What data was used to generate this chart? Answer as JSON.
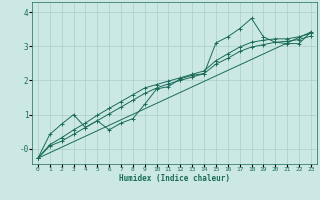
{
  "xlabel": "Humidex (Indice chaleur)",
  "bg_color": "#cce8e4",
  "grid_color": "#aacfcc",
  "line_color": "#1a6b5a",
  "xlim": [
    -0.5,
    23.5
  ],
  "ylim": [
    -0.45,
    4.3
  ],
  "yticks": [
    0,
    1,
    2,
    3,
    4
  ],
  "ytick_labels": [
    "-0",
    "1",
    "2",
    "3",
    "4"
  ],
  "xticks": [
    0,
    1,
    2,
    3,
    4,
    5,
    6,
    7,
    8,
    9,
    10,
    11,
    12,
    13,
    14,
    15,
    16,
    17,
    18,
    19,
    20,
    21,
    22,
    23
  ],
  "line1_x": [
    0,
    1,
    2,
    3,
    4,
    5,
    6,
    7,
    8,
    9,
    10,
    11,
    12,
    13,
    14,
    15,
    16,
    17,
    18,
    19,
    20,
    21,
    22,
    23
  ],
  "line1_y": [
    -0.28,
    0.42,
    0.72,
    1.0,
    0.62,
    0.82,
    0.55,
    0.75,
    0.88,
    1.3,
    1.75,
    1.82,
    2.05,
    2.15,
    2.2,
    3.1,
    3.28,
    3.52,
    3.82,
    3.28,
    3.12,
    3.08,
    3.08,
    3.42
  ],
  "line2_x": [
    0,
    23
  ],
  "line2_y": [
    -0.28,
    3.42
  ],
  "line3_x": [
    0,
    1,
    2,
    3,
    4,
    5,
    6,
    7,
    8,
    9,
    10,
    11,
    12,
    13,
    14,
    15,
    16,
    17,
    18,
    19,
    20,
    21,
    22,
    23
  ],
  "line3_y": [
    -0.28,
    0.12,
    0.32,
    0.55,
    0.75,
    0.98,
    1.18,
    1.38,
    1.58,
    1.78,
    1.88,
    1.98,
    2.08,
    2.18,
    2.28,
    2.58,
    2.78,
    2.98,
    3.12,
    3.18,
    3.22,
    3.22,
    3.28,
    3.38
  ],
  "line4_x": [
    0,
    1,
    2,
    3,
    4,
    5,
    6,
    7,
    8,
    9,
    10,
    11,
    12,
    13,
    14,
    15,
    16,
    17,
    18,
    19,
    20,
    21,
    22,
    23
  ],
  "line4_y": [
    -0.28,
    0.08,
    0.22,
    0.42,
    0.62,
    0.82,
    1.02,
    1.22,
    1.42,
    1.62,
    1.78,
    1.9,
    2.0,
    2.1,
    2.2,
    2.48,
    2.65,
    2.85,
    2.98,
    3.05,
    3.12,
    3.15,
    3.2,
    3.3
  ]
}
